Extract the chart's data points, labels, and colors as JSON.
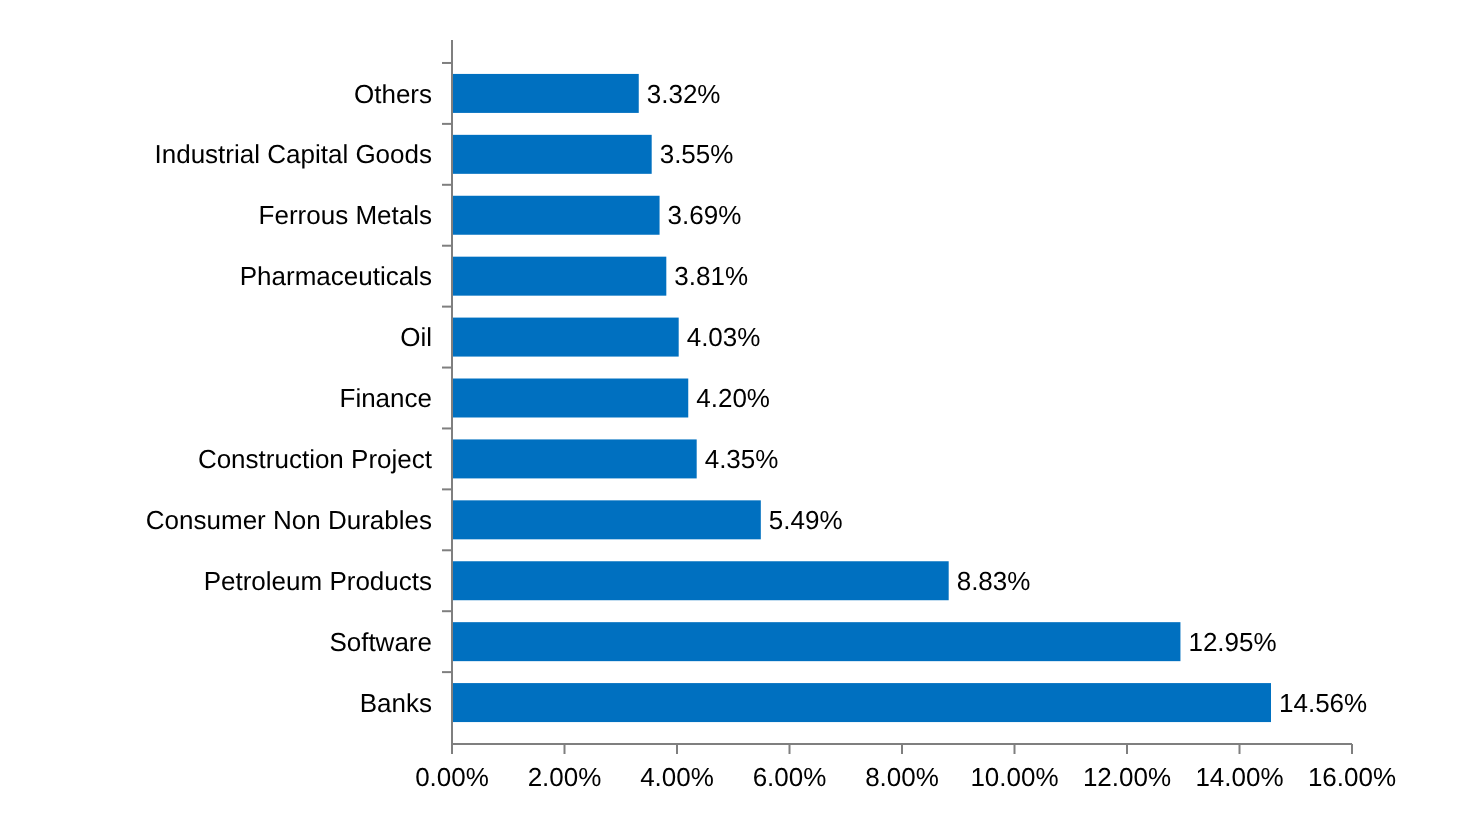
{
  "chart_data": {
    "type": "bar",
    "orientation": "horizontal",
    "categories": [
      "Others",
      "Industrial Capital Goods",
      "Ferrous Metals",
      "Pharmaceuticals",
      "Oil",
      "Finance",
      "Construction Project",
      "Consumer Non Durables",
      "Petroleum Products",
      "Software",
      "Banks"
    ],
    "values": [
      3.32,
      3.55,
      3.69,
      3.81,
      4.03,
      4.2,
      4.35,
      5.49,
      8.83,
      12.95,
      14.56
    ],
    "value_labels": [
      "3.32%",
      "3.55%",
      "3.69%",
      "3.81%",
      "4.03%",
      "4.20%",
      "4.35%",
      "5.49%",
      "8.83%",
      "12.95%",
      "14.56%"
    ],
    "color": "#0070c0",
    "xlim": [
      0,
      16
    ],
    "xticks": [
      {
        "value": 0,
        "label": "0.00%"
      },
      {
        "value": 2,
        "label": "2.00%"
      },
      {
        "value": 4,
        "label": "4.00%"
      },
      {
        "value": 6,
        "label": "6.00%"
      },
      {
        "value": 8,
        "label": "8.00%"
      },
      {
        "value": 10,
        "label": "10.00%"
      },
      {
        "value": 12,
        "label": "12.00%"
      },
      {
        "value": 14,
        "label": "14.00%"
      },
      {
        "value": 16,
        "label": "16.00%"
      }
    ],
    "grid": false
  }
}
